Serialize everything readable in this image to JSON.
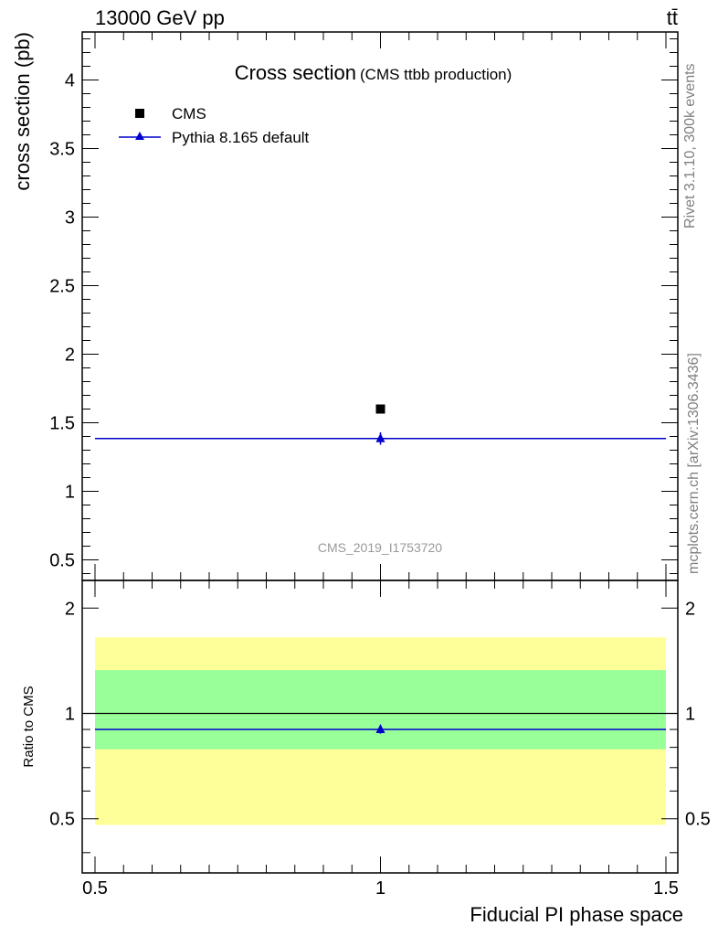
{
  "header": {
    "energy": "13000 GeV pp",
    "process": "tt̄"
  },
  "side_labels": {
    "rivet": "Rivet 3.1.10,  300k events",
    "source": "mcplots.cern.ch [arXiv:1306.3436]"
  },
  "chart_data": [
    {
      "type": "scatter",
      "panel": "main",
      "title": "Cross section",
      "subtitle": "(CMS ttbb production)",
      "xlabel": "Fiducial PI phase space",
      "ylabel": "cross section (pb)",
      "xlim": [
        0.5,
        1.5
      ],
      "ylim": [
        0.35,
        4.35
      ],
      "yticks": [
        0.5,
        1,
        1.5,
        2,
        2.5,
        3,
        3.5,
        4
      ],
      "ytick_labels": [
        "0.5",
        "1",
        "1.5",
        "2",
        "2.5",
        "3",
        "3.5",
        "4"
      ],
      "watermark": "CMS_2019_I1753720",
      "legend": [
        "CMS",
        "Pythia 8.165 default"
      ],
      "series": [
        {
          "name": "CMS",
          "style": "square",
          "color": "#000000",
          "x": [
            1.0
          ],
          "y": [
            1.6
          ],
          "yerr": [
            0.0
          ]
        },
        {
          "name": "Pythia 8.165 default",
          "style": "triangle-line",
          "color": "#0000cc",
          "x": [
            1.0
          ],
          "y": [
            1.385
          ],
          "yerr": [
            0.045
          ],
          "line_x": [
            0.5,
            1.5
          ]
        }
      ]
    },
    {
      "type": "scatter",
      "panel": "ratio",
      "ylabel": "Ratio to CMS",
      "xlim": [
        0.5,
        1.5
      ],
      "ylim": [
        0.35,
        2.4
      ],
      "yticks": [
        0.5,
        1,
        2
      ],
      "ytick_labels": [
        "0.5",
        "1",
        "2"
      ],
      "xticks": [
        0.5,
        1,
        1.5
      ],
      "xtick_labels": [
        "0.5",
        "1",
        "1.5"
      ],
      "bands": [
        {
          "name": "outer",
          "color": "#ffff99",
          "low": 0.48,
          "high": 1.65
        },
        {
          "name": "inner",
          "color": "#99ff99",
          "low": 0.79,
          "high": 1.33
        }
      ],
      "reference_line": 1.0,
      "series": [
        {
          "name": "Pythia 8.165 default",
          "color": "#0000cc",
          "x": [
            1.0
          ],
          "y": [
            0.9
          ],
          "yerr": [
            0.025
          ],
          "line_x": [
            0.5,
            1.5
          ]
        }
      ]
    }
  ]
}
